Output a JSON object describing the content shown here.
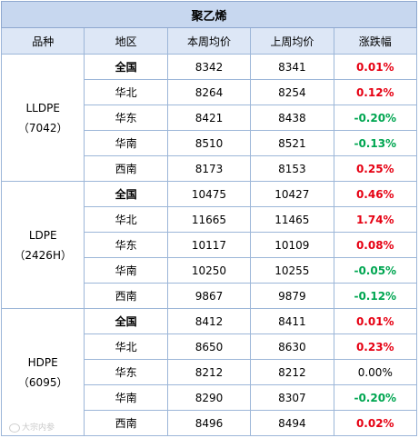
{
  "title": "聚乙烯",
  "headers": [
    "品种",
    "地区",
    "本周均价",
    "上周均价",
    "涨跌幅"
  ],
  "groups": [
    {
      "name": "LLDPE",
      "code": "（7042）",
      "rows": [
        {
          "region": "全国",
          "this_week": "8342",
          "last_week": "8341",
          "change": "0.01%",
          "trend": "up"
        },
        {
          "region": "华北",
          "this_week": "8264",
          "last_week": "8254",
          "change": "0.12%",
          "trend": "up"
        },
        {
          "region": "华东",
          "this_week": "8421",
          "last_week": "8438",
          "change": "-0.20%",
          "trend": "down"
        },
        {
          "region": "华南",
          "this_week": "8510",
          "last_week": "8521",
          "change": "-0.13%",
          "trend": "down"
        },
        {
          "region": "西南",
          "this_week": "8173",
          "last_week": "8153",
          "change": "0.25%",
          "trend": "up"
        }
      ]
    },
    {
      "name": "LDPE",
      "code": "（2426H）",
      "rows": [
        {
          "region": "全国",
          "this_week": "10475",
          "last_week": "10427",
          "change": "0.46%",
          "trend": "up"
        },
        {
          "region": "华北",
          "this_week": "11665",
          "last_week": "11465",
          "change": "1.74%",
          "trend": "up"
        },
        {
          "region": "华东",
          "this_week": "10117",
          "last_week": "10109",
          "change": "0.08%",
          "trend": "up"
        },
        {
          "region": "华南",
          "this_week": "10250",
          "last_week": "10255",
          "change": "-0.05%",
          "trend": "down"
        },
        {
          "region": "西南",
          "this_week": "9867",
          "last_week": "9879",
          "change": "-0.12%",
          "trend": "down"
        }
      ]
    },
    {
      "name": "HDPE",
      "code": "（6095）",
      "rows": [
        {
          "region": "全国",
          "this_week": "8412",
          "last_week": "8411",
          "change": "0.01%",
          "trend": "up"
        },
        {
          "region": "华北",
          "this_week": "8650",
          "last_week": "8630",
          "change": "0.23%",
          "trend": "up"
        },
        {
          "region": "华东",
          "this_week": "8212",
          "last_week": "8212",
          "change": "0.00%",
          "trend": "flat"
        },
        {
          "region": "华南",
          "this_week": "8290",
          "last_week": "8307",
          "change": "-0.20%",
          "trend": "down"
        },
        {
          "region": "西南",
          "this_week": "8496",
          "last_week": "8494",
          "change": "0.02%",
          "trend": "up"
        }
      ]
    }
  ],
  "watermark": "大宗内参",
  "colors": {
    "up": "#e60012",
    "down": "#00a651",
    "flat": "#000000",
    "title_bg": "#c7d7ef",
    "header_bg": "#dde7f6",
    "border": "#9cb6d8"
  }
}
